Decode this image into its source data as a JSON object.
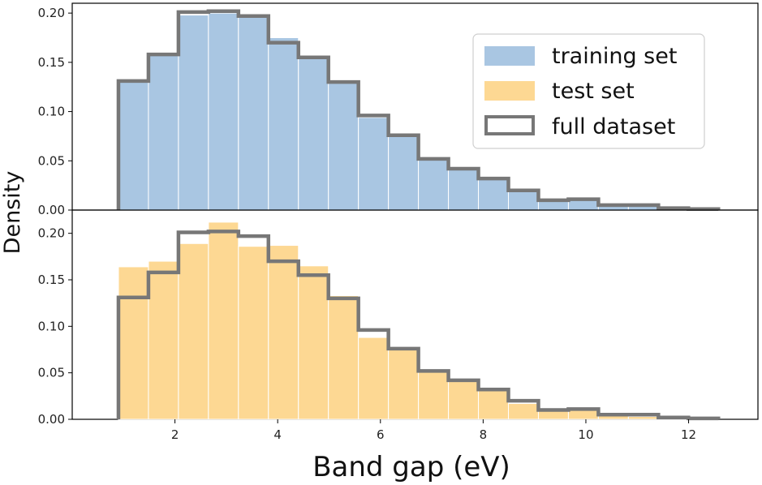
{
  "chart_data": [
    {
      "type": "bar",
      "panel": "top",
      "ylim": [
        0,
        0.21
      ],
      "xlim": [
        0.0,
        13.35
      ],
      "yticks": [
        "0.00",
        "0.05",
        "0.10",
        "0.15",
        "0.20"
      ],
      "bin_edges": [
        0.9,
        1.484,
        2.068,
        2.652,
        3.236,
        3.82,
        4.404,
        4.988,
        5.572,
        6.156,
        6.74,
        7.324,
        7.908,
        8.492,
        9.076,
        9.66,
        10.244,
        10.828,
        11.412,
        11.996,
        12.58
      ],
      "series": [
        {
          "name": "training set",
          "kind": "filled",
          "color": "#a9c6e2",
          "values": [
            0.131,
            0.158,
            0.198,
            0.2,
            0.197,
            0.175,
            0.155,
            0.13,
            0.094,
            0.076,
            0.052,
            0.042,
            0.032,
            0.02,
            0.01,
            0.01,
            0.005,
            0.005,
            0.002,
            0.001
          ]
        },
        {
          "name": "full dataset",
          "kind": "step",
          "color": "#777777",
          "values": [
            0.131,
            0.158,
            0.201,
            0.202,
            0.197,
            0.17,
            0.155,
            0.13,
            0.096,
            0.076,
            0.052,
            0.042,
            0.032,
            0.02,
            0.01,
            0.011,
            0.005,
            0.005,
            0.002,
            0.001
          ]
        }
      ]
    },
    {
      "type": "bar",
      "panel": "bottom",
      "ylim": [
        0,
        0.225
      ],
      "xlim": [
        0.0,
        13.35
      ],
      "yticks": [
        "0.00",
        "0.05",
        "0.10",
        "0.15",
        "0.20"
      ],
      "xticks": [
        "2",
        "4",
        "6",
        "8",
        "10",
        "12"
      ],
      "xlabel": "Band gap (eV)",
      "bin_edges": [
        0.9,
        1.484,
        2.068,
        2.652,
        3.236,
        3.82,
        4.404,
        4.988,
        5.572,
        6.156,
        6.74,
        7.324,
        7.908,
        8.492,
        9.076,
        9.66,
        10.244,
        10.828,
        11.412,
        11.996,
        12.58
      ],
      "series": [
        {
          "name": "test set",
          "kind": "filled",
          "color": "#fdd893",
          "values": [
            0.164,
            0.17,
            0.189,
            0.212,
            0.186,
            0.187,
            0.165,
            0.133,
            0.088,
            0.078,
            0.054,
            0.041,
            0.032,
            0.017,
            0.009,
            0.012,
            0.007,
            0.003,
            0.001,
            0.0
          ]
        },
        {
          "name": "full dataset",
          "kind": "step",
          "color": "#777777",
          "values": [
            0.131,
            0.158,
            0.201,
            0.202,
            0.197,
            0.17,
            0.155,
            0.13,
            0.096,
            0.076,
            0.052,
            0.042,
            0.032,
            0.02,
            0.01,
            0.011,
            0.005,
            0.005,
            0.002,
            0.001
          ]
        }
      ]
    }
  ],
  "shared_ylabel": "Density",
  "legend": {
    "placement": "top-right",
    "entries": [
      {
        "label": "training set",
        "style": "filled",
        "color": "#a9c6e2"
      },
      {
        "label": "test set",
        "style": "filled",
        "color": "#fdd893"
      },
      {
        "label": "full dataset",
        "style": "outline",
        "color": "#777777"
      }
    ]
  }
}
